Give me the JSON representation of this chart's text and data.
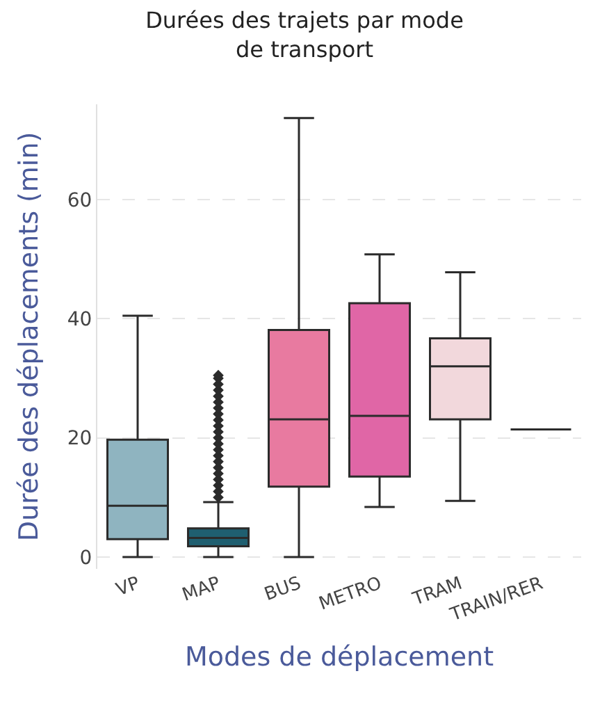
{
  "chart_data": {
    "type": "box",
    "title": "Durées des trajets par mode\nde transport",
    "xlabel": "Modes de déplacement",
    "ylabel": "Durée des déplacements (min)",
    "categories": [
      "VP",
      "MAP",
      "BUS",
      "METRO",
      "TRAM",
      "TRAIN/RER"
    ],
    "colors": [
      "#8fb4c0",
      "#1f5f70",
      "#e87aa0",
      "#e066a6",
      "#f2d8dc",
      "#2b2b2b"
    ],
    "boxes": [
      {
        "low": 0,
        "q1": 3.0,
        "median": 8.6,
        "q3": 19.7,
        "high": 40.5
      },
      {
        "low": 0,
        "q1": 1.8,
        "median": 3.2,
        "q3": 4.8,
        "high": 9.2,
        "outliers": [
          10,
          11,
          12,
          13,
          14,
          15,
          16,
          17,
          18,
          19,
          20,
          21,
          22,
          23,
          24,
          25,
          26,
          27,
          28,
          29,
          30,
          30.5
        ]
      },
      {
        "low": 0,
        "q1": 11.8,
        "median": 23.1,
        "q3": 38.1,
        "high": 73.7
      },
      {
        "low": 8.4,
        "q1": 13.5,
        "median": 23.7,
        "q3": 42.6,
        "high": 50.8
      },
      {
        "low": 9.4,
        "q1": 23.1,
        "median": 32.0,
        "q3": 36.7,
        "high": 47.8
      },
      {
        "low": 21.4,
        "q1": 21.4,
        "median": 21.4,
        "q3": 21.4,
        "high": 21.4
      }
    ],
    "ylim": [
      -2,
      76
    ],
    "yticks": [
      0,
      20,
      40,
      60
    ],
    "grid": "y"
  }
}
